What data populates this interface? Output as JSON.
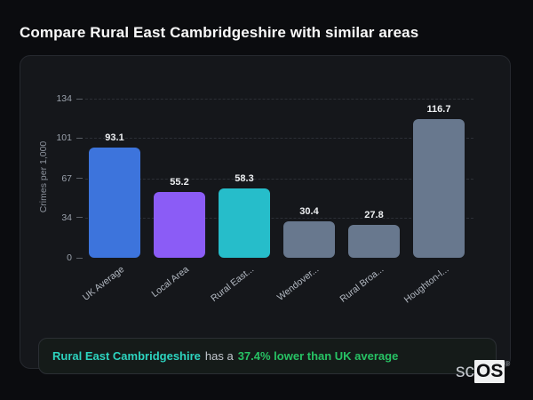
{
  "page": {
    "title": "Compare Rural East Cambridgeshire with similar areas"
  },
  "chart_data": {
    "type": "bar",
    "title": "",
    "xlabel": "",
    "ylabel": "Crimes per 1,000",
    "ylim": [
      0,
      134
    ],
    "yticks": [
      0,
      34,
      67,
      101,
      134
    ],
    "grid": "dashed-horizontal",
    "legend": "none",
    "categories": [
      "UK Average",
      "Local Area",
      "Rural East...",
      "Wendover...",
      "Rural Broa...",
      "Houghton-l..."
    ],
    "values": [
      93.1,
      55.2,
      58.3,
      30.4,
      27.8,
      116.7
    ],
    "value_labels": [
      "93.1",
      "55.2",
      "58.3",
      "30.4",
      "27.8",
      "116.7"
    ],
    "bar_colors": [
      "#3d74dc",
      "#8b5cf6",
      "#26bdca",
      "#68788e",
      "#68788e",
      "#68788e"
    ]
  },
  "note": {
    "subject": "Rural East Cambridgeshire",
    "connector": "has a",
    "highlight": "37.4% lower than UK average",
    "subject_color": "#2dd4bf",
    "highlight_color": "#27c264"
  },
  "logo": {
    "prefix": "sc",
    "suffix": "OS",
    "trademark": "®"
  },
  "colors": {
    "page_bg": "#0b0c0f",
    "card_bg": "#15171b",
    "card_border": "#26292f",
    "grid": "#2c2f36",
    "tick_text": "#9aa1ab",
    "value_text": "#edeff1"
  }
}
